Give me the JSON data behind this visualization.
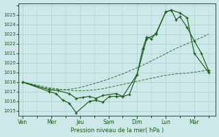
{
  "bg_color": "#cce8e8",
  "grid_color": "#aacece",
  "line_color_dark": "#1a5c1a",
  "line_color_light": "#3a7a3a",
  "xlabel": "Pression niveau de la mer( hPa )",
  "ylim": [
    1014.5,
    1026.2
  ],
  "yticks": [
    1015,
    1016,
    1017,
    1018,
    1019,
    1020,
    1021,
    1022,
    1023,
    1024,
    1025
  ],
  "xtick_labels": [
    "Ven",
    "Mer",
    "Jeu",
    "Sam",
    "Dim",
    "Lun",
    "Mar"
  ],
  "xtick_positions": [
    0,
    2,
    4,
    6,
    8,
    10,
    12
  ],
  "xlim": [
    -0.3,
    13.5
  ],
  "line1_x": [
    0,
    0.46,
    0.93,
    1.4,
    1.86,
    2.33,
    2.8,
    3.26,
    3.73,
    4.2,
    4.66,
    5.13,
    5.6,
    6.06,
    6.53,
    7.0,
    7.46,
    7.93,
    8.4,
    8.86,
    9.33,
    9.8,
    10.26,
    10.73,
    11.2,
    11.66,
    12.13,
    12.6,
    13.0
  ],
  "line1_y": [
    1018.0,
    1017.85,
    1017.7,
    1017.55,
    1017.4,
    1017.3,
    1017.2,
    1017.15,
    1017.1,
    1017.1,
    1017.15,
    1017.2,
    1017.3,
    1017.45,
    1017.6,
    1017.75,
    1017.9,
    1018.05,
    1018.2,
    1018.35,
    1018.5,
    1018.65,
    1018.75,
    1018.85,
    1018.9,
    1018.95,
    1019.05,
    1019.15,
    1019.3
  ],
  "line2_x": [
    0,
    0.46,
    0.93,
    1.4,
    1.86,
    2.33,
    2.8,
    3.26,
    3.73,
    4.2,
    4.66,
    5.13,
    5.6,
    6.06,
    6.53,
    7.0,
    7.46,
    7.93,
    8.4,
    8.86,
    9.33,
    9.8,
    10.26,
    10.73,
    11.2,
    11.66,
    12.13,
    12.6,
    13.0
  ],
  "line2_y": [
    1018.0,
    1017.75,
    1017.55,
    1017.4,
    1017.3,
    1017.25,
    1017.2,
    1017.25,
    1017.35,
    1017.5,
    1017.7,
    1017.9,
    1018.1,
    1018.35,
    1018.6,
    1018.85,
    1019.15,
    1019.45,
    1019.75,
    1020.1,
    1020.45,
    1020.8,
    1021.15,
    1021.5,
    1021.8,
    1022.1,
    1022.4,
    1022.7,
    1023.0
  ],
  "line3_x": [
    0,
    1.86,
    2.33,
    2.8,
    3.26,
    3.73,
    4.66,
    5.13,
    5.6,
    6.06,
    6.53,
    7.0,
    8.0,
    8.4,
    8.67,
    9.0,
    9.33,
    10.0,
    10.4,
    11.0,
    11.5,
    12.0,
    13.0
  ],
  "line3_y": [
    1018.0,
    1017.0,
    1016.8,
    1016.1,
    1015.8,
    1014.8,
    1016.0,
    1016.1,
    1015.9,
    1016.5,
    1016.5,
    1016.5,
    1018.8,
    1021.5,
    1022.7,
    1022.5,
    1023.1,
    1025.3,
    1025.5,
    1025.2,
    1024.7,
    1021.0,
    1019.0
  ],
  "line4_x": [
    0,
    1.86,
    2.5,
    3.26,
    3.73,
    4.2,
    4.66,
    5.13,
    5.6,
    6.53,
    7.0,
    7.46,
    8.0,
    8.67,
    9.33,
    10.0,
    10.4,
    10.73,
    11.0,
    11.5,
    12.0,
    12.5,
    13.0
  ],
  "line4_y": [
    1018.0,
    1017.2,
    1017.1,
    1016.8,
    1016.3,
    1016.4,
    1016.5,
    1016.3,
    1016.6,
    1016.8,
    1016.5,
    1016.7,
    1018.8,
    1022.5,
    1023.0,
    1025.3,
    1025.5,
    1024.5,
    1024.8,
    1023.7,
    1022.3,
    1021.0,
    1019.2
  ]
}
